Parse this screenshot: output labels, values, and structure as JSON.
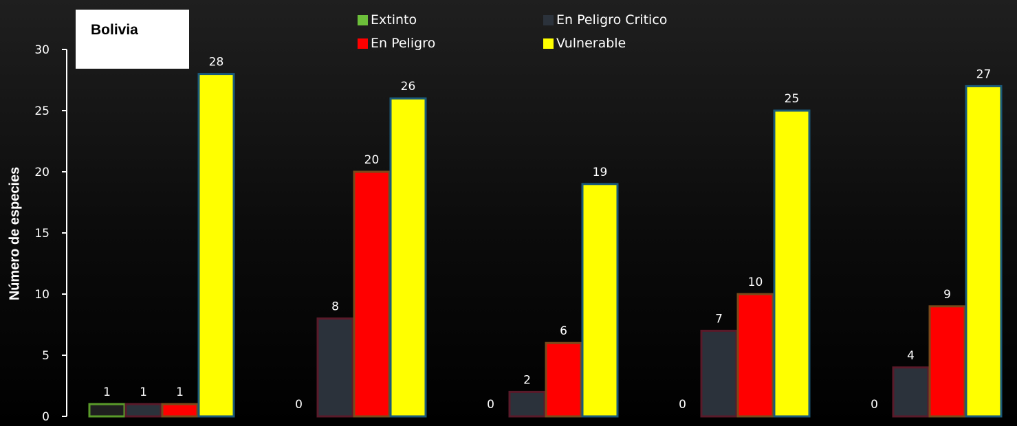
{
  "chart_data": {
    "type": "bar",
    "title": "Bolivia",
    "ylabel": "Número de especies",
    "xlabel": "",
    "ylim": [
      0,
      30
    ],
    "yticks": [
      0,
      5,
      10,
      15,
      20,
      25,
      30
    ],
    "categories": [
      "",
      "",
      "",
      "",
      ""
    ],
    "series": [
      {
        "name": "Extinto",
        "color": "#1f1f1f",
        "border": "#5a9b2a",
        "values": [
          1,
          0,
          0,
          0,
          0
        ]
      },
      {
        "name": "En Peligro Critico",
        "color": "#2b323b",
        "border": "#5a1a2a",
        "values": [
          1,
          8,
          2,
          7,
          4
        ]
      },
      {
        "name": "En Peligro",
        "color": "#ff0000",
        "border": "#7a4a1a",
        "values": [
          1,
          20,
          6,
          10,
          9
        ]
      },
      {
        "name": "Vulnerable",
        "color": "#ffff00",
        "border": "#1a5a7a",
        "values": [
          28,
          26,
          19,
          25,
          27
        ]
      }
    ],
    "legend": "top",
    "grid": false
  },
  "legend_swatches": {
    "Extinto": "#6cbf3a",
    "En Peligro Critico": "#2b323b",
    "En Peligro": "#ff0000",
    "Vulnerable": "#ffff00"
  },
  "colors": {
    "background": "#000000",
    "axis": "#ffffff"
  }
}
